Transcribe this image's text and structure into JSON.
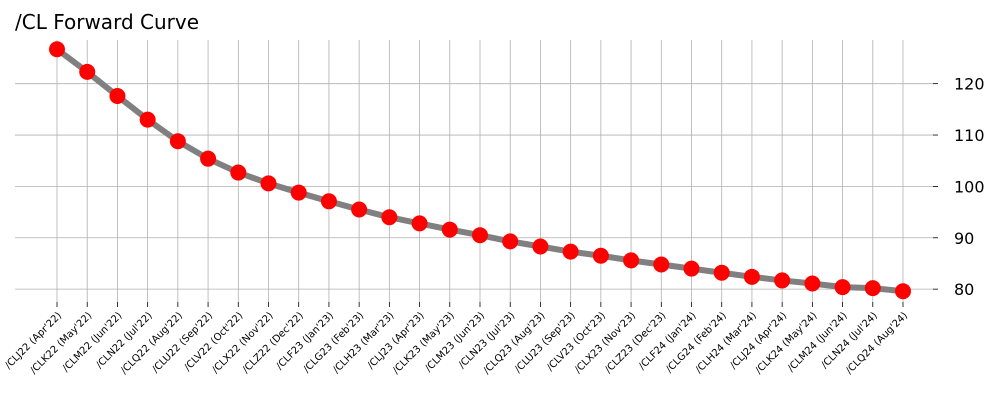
{
  "chart_data": {
    "type": "line",
    "title": "/CL Forward Curve",
    "xlabel": "",
    "ylabel": "",
    "ylim": [
      77.5,
      128.5
    ],
    "yticks": [
      80,
      90,
      100,
      110,
      120
    ],
    "y_axis_side": "right",
    "grid": true,
    "legend": "none",
    "categories": [
      "/CLJ22 (Apr'22)",
      "/CLK22 (May'22)",
      "/CLM22 (Jun'22)",
      "/CLN22 (Jul'22)",
      "/CLQ22 (Aug'22)",
      "/CLU22 (Sep'22)",
      "/CLV22 (Oct'22)",
      "/CLX22 (Nov'22)",
      "/CLZ22 (Dec'22)",
      "/CLF23 (Jan'23)",
      "/CLG23 (Feb'23)",
      "/CLH23 (Mar'23)",
      "/CLJ23 (Apr'23)",
      "/CLK23 (May'23)",
      "/CLM23 (Jun'23)",
      "/CLN23 (Jul'23)",
      "/CLQ23 (Aug'23)",
      "/CLU23 (Sep'23)",
      "/CLV23 (Oct'23)",
      "/CLX23 (Nov'23)",
      "/CLZ23 (Dec'23)",
      "/CLF24 (Jan'24)",
      "/CLG24 (Feb'24)",
      "/CLH24 (Mar'24)",
      "/CLJ24 (Apr'24)",
      "/CLK24 (May'24)",
      "/CLM24 (Jun'24)",
      "/CLN24 (Jul'24)",
      "/CLQ24 (Aug'24)"
    ],
    "series": [
      {
        "values": [
          126.7,
          122.3,
          117.6,
          113.0,
          108.8,
          105.4,
          102.7,
          100.6,
          98.8,
          97.1,
          95.5,
          94.0,
          92.8,
          91.6,
          90.5,
          89.3,
          88.3,
          87.3,
          86.5,
          85.6,
          84.8,
          84.0,
          83.2,
          82.4,
          81.7,
          81.1,
          80.4,
          80.2,
          79.6
        ],
        "line_color": "#808080",
        "marker_color": "#ff0000"
      }
    ]
  }
}
